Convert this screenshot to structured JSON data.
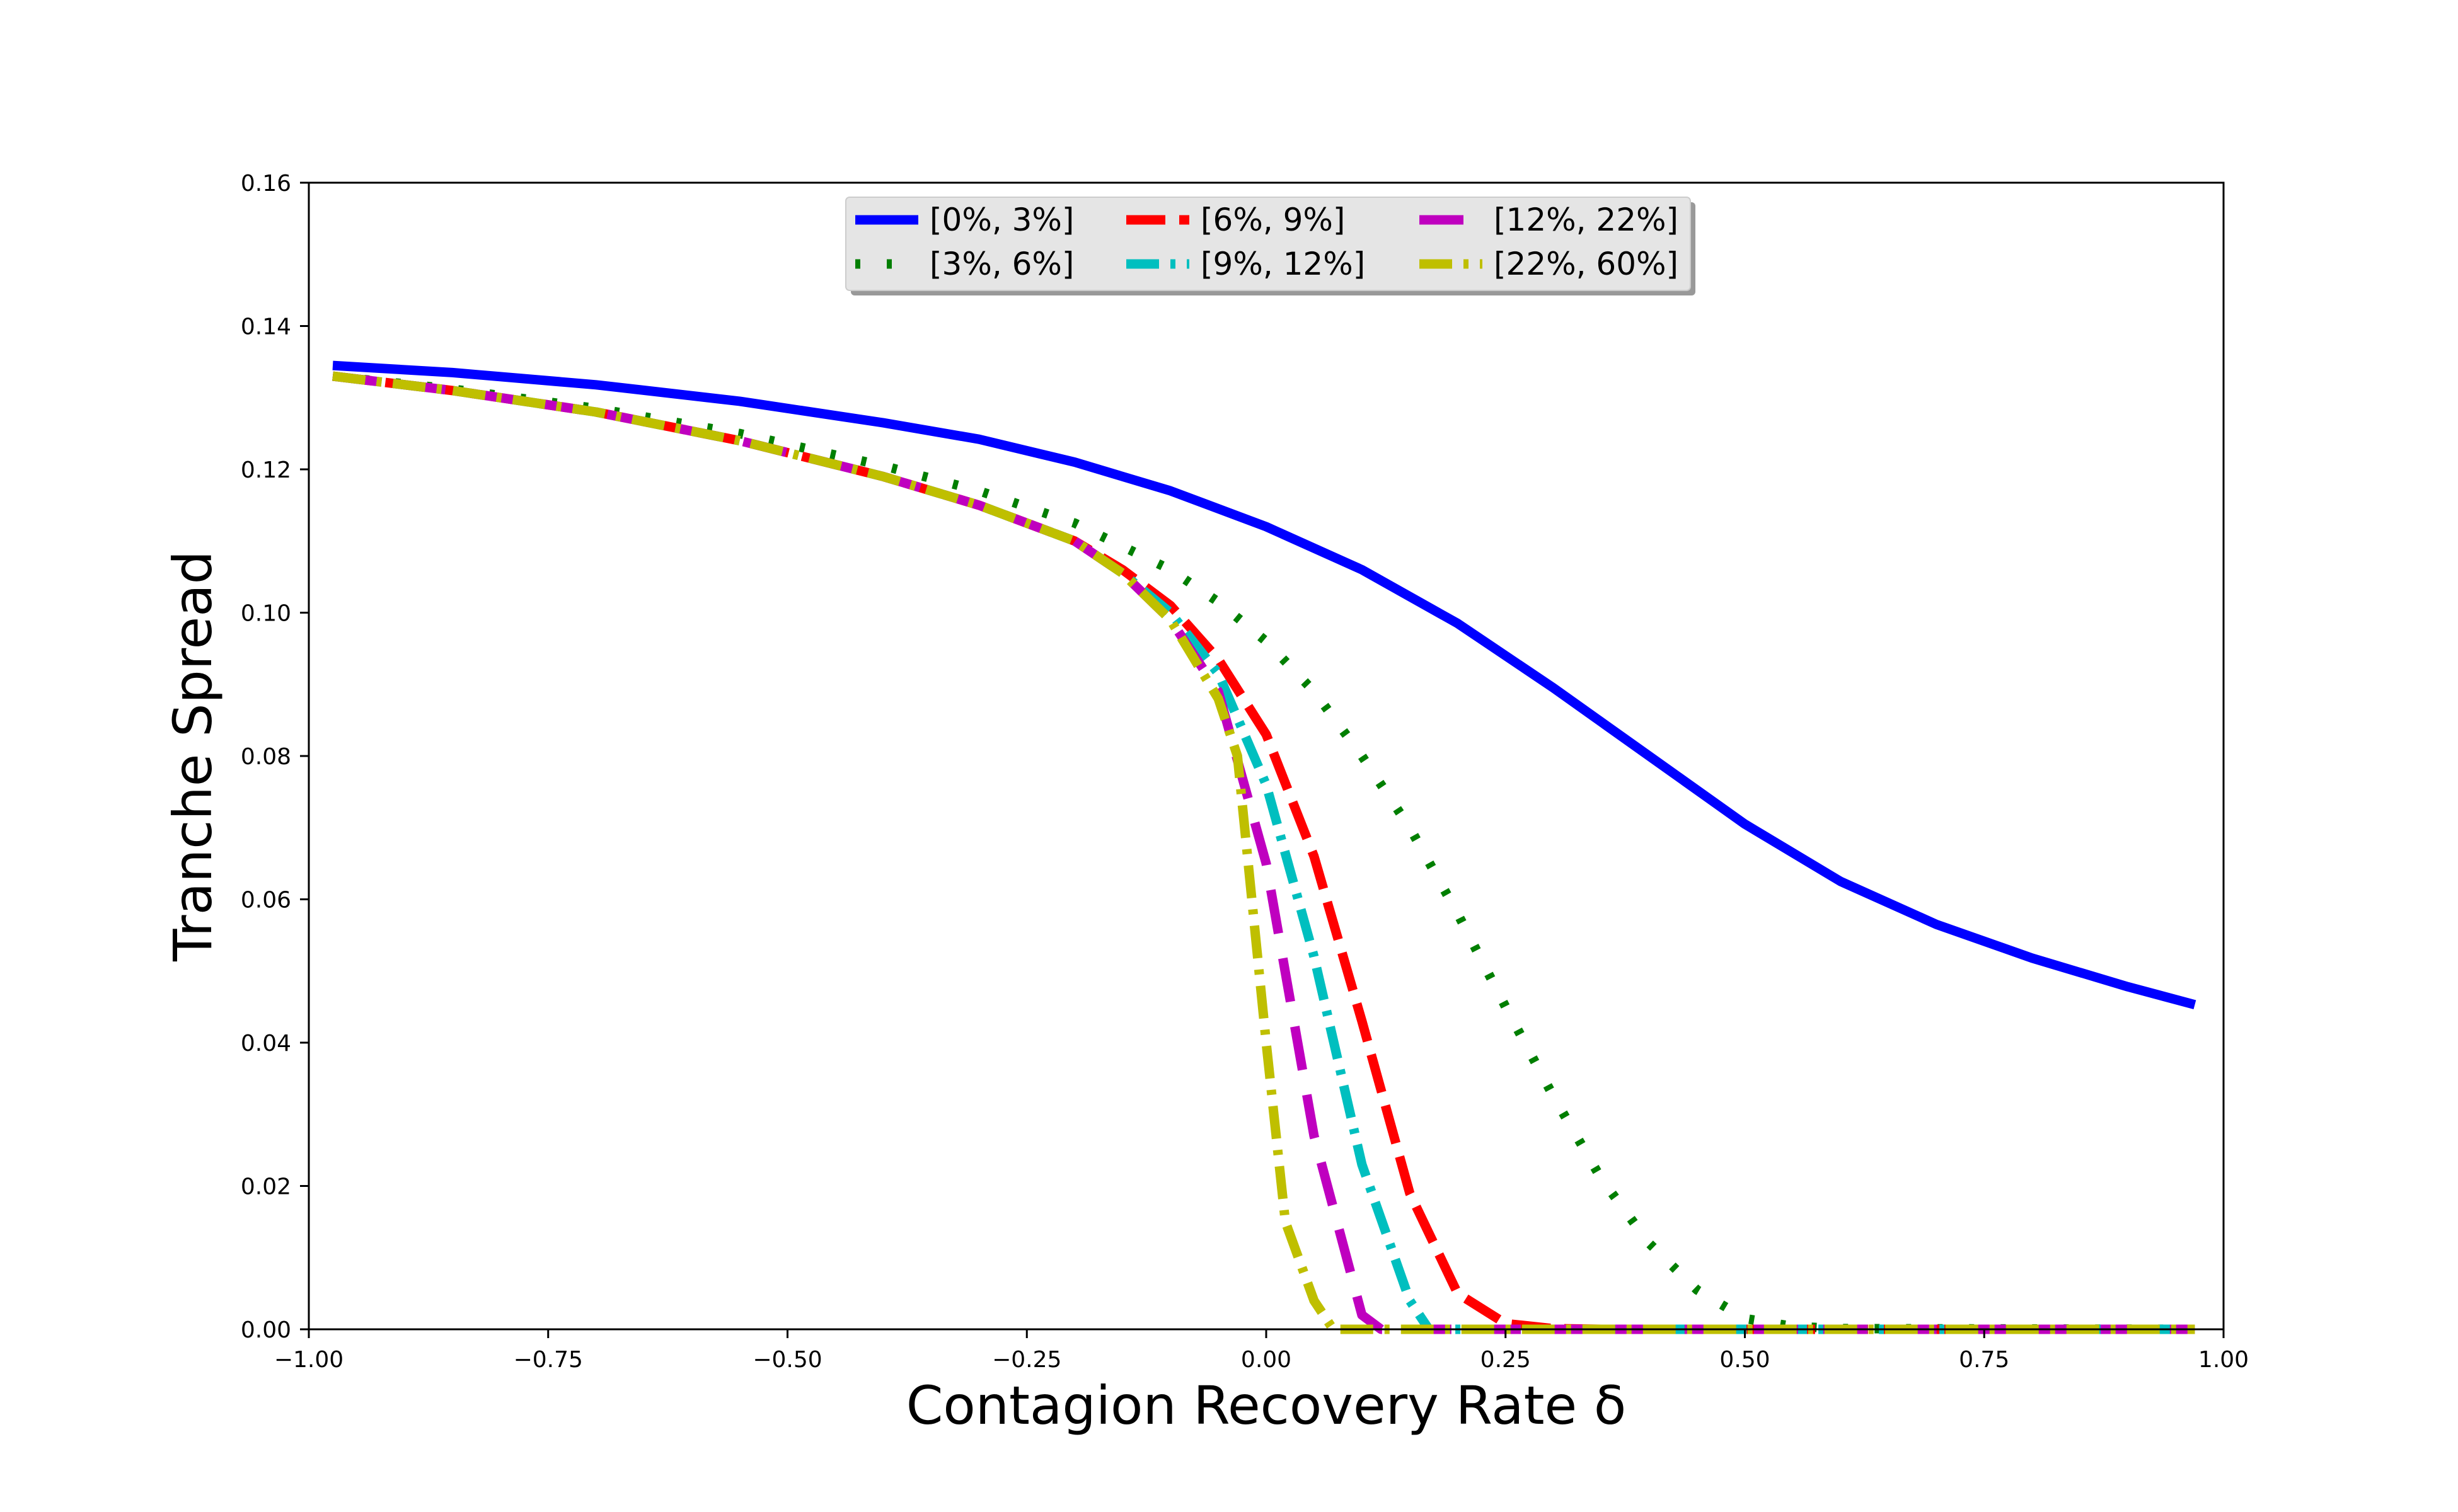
{
  "chart_data": {
    "type": "line",
    "title": "",
    "xlabel": "Contagion Recovery Rate δ",
    "ylabel": "Tranche Spread",
    "xlim": [
      -1.0,
      1.0
    ],
    "ylim": [
      0.0,
      0.16
    ],
    "xticks": [
      -1.0,
      -0.75,
      -0.5,
      -0.25,
      0.0,
      0.25,
      0.5,
      0.75,
      1.0
    ],
    "xtick_labels": [
      "−1.00",
      "−0.75",
      "−0.50",
      "−0.25",
      "0.00",
      "0.25",
      "0.50",
      "0.75",
      "1.00"
    ],
    "yticks": [
      0.0,
      0.02,
      0.04,
      0.06,
      0.08,
      0.1,
      0.12,
      0.14,
      0.16
    ],
    "ytick_labels": [
      "0.00",
      "0.02",
      "0.04",
      "0.06",
      "0.08",
      "0.10",
      "0.12",
      "0.14",
      "0.16"
    ],
    "grid": false,
    "legend_position": "top-center",
    "legend_columns": 3,
    "series": [
      {
        "name": "[0%, 3%]",
        "color": "#0000ff",
        "style": "solid",
        "x": [
          -0.975,
          -0.85,
          -0.7,
          -0.55,
          -0.4,
          -0.3,
          -0.2,
          -0.1,
          0.0,
          0.1,
          0.2,
          0.3,
          0.4,
          0.5,
          0.6,
          0.7,
          0.8,
          0.9,
          0.97
        ],
        "y": [
          0.1345,
          0.1335,
          0.1318,
          0.1295,
          0.1265,
          0.1242,
          0.121,
          0.117,
          0.112,
          0.106,
          0.0985,
          0.0895,
          0.08,
          0.0705,
          0.0625,
          0.0565,
          0.0518,
          0.0478,
          0.0453
        ]
      },
      {
        "name": "[3%, 6%]",
        "color": "#007f00",
        "style": "dotted",
        "x": [
          -0.975,
          -0.85,
          -0.7,
          -0.55,
          -0.4,
          -0.3,
          -0.2,
          -0.1,
          -0.05,
          0.0,
          0.05,
          0.1,
          0.15,
          0.2,
          0.25,
          0.3,
          0.35,
          0.4,
          0.45,
          0.5,
          0.55,
          0.6,
          0.97
        ],
        "y": [
          0.133,
          0.1312,
          0.1285,
          0.125,
          0.1205,
          0.117,
          0.1125,
          0.106,
          0.1015,
          0.096,
          0.089,
          0.08,
          0.07,
          0.058,
          0.045,
          0.0325,
          0.021,
          0.012,
          0.0055,
          0.0015,
          0.0004,
          0.0001,
          0.0
        ]
      },
      {
        "name": "[6%, 9%]",
        "color": "#ff0000",
        "style": "dashed",
        "x": [
          -0.975,
          -0.85,
          -0.7,
          -0.55,
          -0.4,
          -0.3,
          -0.2,
          -0.15,
          -0.1,
          -0.05,
          0.0,
          0.05,
          0.1,
          0.15,
          0.2,
          0.25,
          0.3,
          0.35,
          0.97
        ],
        "y": [
          0.133,
          0.131,
          0.128,
          0.124,
          0.119,
          0.115,
          0.11,
          0.106,
          0.101,
          0.0935,
          0.083,
          0.066,
          0.043,
          0.019,
          0.005,
          0.0008,
          0.0001,
          0.0,
          0.0
        ]
      },
      {
        "name": "[9%, 12%]",
        "color": "#00bfbf",
        "style": "dashdot",
        "x": [
          -0.975,
          -0.85,
          -0.7,
          -0.55,
          -0.4,
          -0.3,
          -0.2,
          -0.15,
          -0.1,
          -0.05,
          0.0,
          0.05,
          0.1,
          0.15,
          0.17,
          0.2,
          0.97
        ],
        "y": [
          0.133,
          0.131,
          0.128,
          0.124,
          0.119,
          0.115,
          0.11,
          0.1055,
          0.1,
          0.0915,
          0.076,
          0.052,
          0.023,
          0.004,
          0.0,
          0.0,
          0.0
        ]
      },
      {
        "name": "[12%, 22%]",
        "color": "#bf00bf",
        "style": "longdash",
        "x": [
          -0.975,
          -0.85,
          -0.7,
          -0.55,
          -0.4,
          -0.3,
          -0.2,
          -0.15,
          -0.1,
          -0.05,
          0.0,
          0.05,
          0.1,
          0.12,
          0.2,
          0.97
        ],
        "y": [
          0.133,
          0.131,
          0.128,
          0.124,
          0.119,
          0.115,
          0.11,
          0.1055,
          0.099,
          0.089,
          0.065,
          0.027,
          0.002,
          0.0,
          0.0,
          0.0
        ]
      },
      {
        "name": "[22%, 60%]",
        "color": "#bfbf00",
        "style": "dashdot",
        "x": [
          -0.975,
          -0.85,
          -0.7,
          -0.55,
          -0.4,
          -0.3,
          -0.2,
          -0.15,
          -0.1,
          -0.05,
          -0.03,
          0.0,
          0.02,
          0.05,
          0.07,
          0.1,
          0.97
        ],
        "y": [
          0.133,
          0.131,
          0.128,
          0.124,
          0.119,
          0.115,
          0.11,
          0.1055,
          0.099,
          0.088,
          0.08,
          0.04,
          0.015,
          0.004,
          0.0,
          0.0,
          0.0
        ]
      }
    ]
  }
}
